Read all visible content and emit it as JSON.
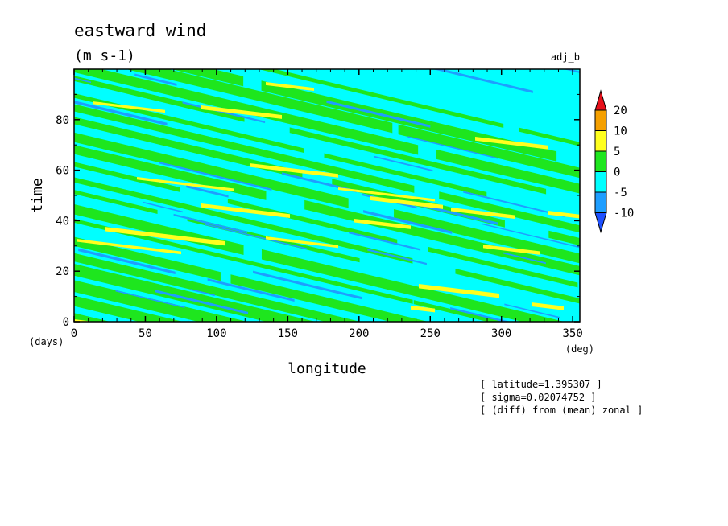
{
  "chart_data": {
    "type": "heatmap",
    "title": "eastward wind",
    "units": "(m s-1)",
    "tag": "adj_b",
    "xlabel": "longitude",
    "ylabel": "time",
    "x_unit": "(deg)",
    "y_unit": "(days)",
    "xlim": [
      0,
      355
    ],
    "ylim": [
      0,
      100
    ],
    "x_ticks": [
      0,
      50,
      100,
      150,
      200,
      250,
      300,
      350
    ],
    "y_ticks": [
      0,
      20,
      40,
      60,
      80
    ],
    "colorbar": {
      "levels": [
        "20",
        "10",
        "5",
        "0",
        "-5",
        "-10"
      ],
      "colors": [
        "#e8101a",
        "#f5a000",
        "#ffff1e",
        "#1ee61e",
        "#00ffff",
        "#1e9eff",
        "#1e50ff"
      ]
    },
    "pattern": "bands of -5 to 5 m/s tilted downward toward larger longitude (westward propagation), occasional 5 to 10 m/s streaks",
    "notes": [
      "[ latitude=1.395307 ]",
      "[ sigma=0.02074752 ]",
      "[ (diff) from (mean) zonal ]"
    ]
  }
}
